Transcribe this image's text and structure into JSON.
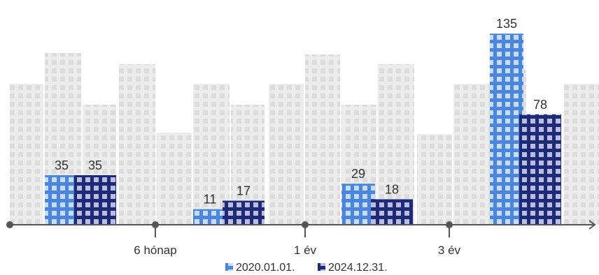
{
  "chart_data": {
    "type": "bar",
    "categories": [
      "",
      "",
      "",
      ""
    ],
    "series": [
      {
        "name": "2020.01.01.",
        "values": [
          35,
          11,
          29,
          135
        ],
        "color": "#4a86e0"
      },
      {
        "name": "2024.12.31.",
        "values": [
          35,
          17,
          18,
          78
        ],
        "color": "#1e2a78"
      }
    ],
    "axis_ticks": [
      "6 hónap",
      "1 év",
      "3 év"
    ],
    "ylim": [
      0,
      140
    ],
    "legend_position": "bottom-center",
    "grid": false,
    "background_colors": {
      "building": "#ececec",
      "window": "#d9d9d9"
    },
    "axis_color": "#555555"
  }
}
